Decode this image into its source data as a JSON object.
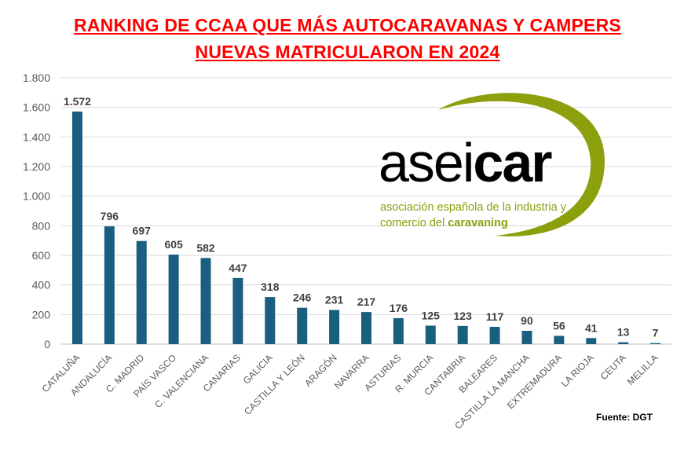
{
  "title_line1": "RANKING DE CCAA QUE MÁS AUTOCARAVANAS Y CAMPERS",
  "title_line2": "NUEVAS MATRICULARON EN 2024",
  "source": "Fuente: DGT",
  "logo": {
    "word_light": "asei",
    "word_bold": "car",
    "tagline1": "asociación española de la industria y",
    "tagline2_prefix": "comercio del ",
    "tagline2_bold": "caravaning",
    "accent_color": "#8ca00e"
  },
  "chart_data": {
    "type": "bar",
    "categories": [
      "CATALUÑA",
      "ANDALUCÍA",
      "C. MADRID",
      "PAÍS VASCO",
      "C. VALENCIANA",
      "CANARIAS",
      "GALICIA",
      "CASTILLA Y LEÓN",
      "ARAGÓN",
      "NAVARRA",
      "ASTURIAS",
      "R. MURCIA",
      "CANTABRIA",
      "BALEARES",
      "CASTILLA LA MANCHA",
      "EXTREMADURA",
      "LA RIOJA",
      "CEUTA",
      "MELILLA"
    ],
    "values": [
      1572,
      796,
      697,
      605,
      582,
      447,
      318,
      246,
      231,
      217,
      176,
      125,
      123,
      117,
      90,
      56,
      41,
      13,
      7
    ],
    "value_labels": [
      "1.572",
      "796",
      "697",
      "605",
      "582",
      "447",
      "318",
      "246",
      "231",
      "217",
      "176",
      "125",
      "123",
      "117",
      "90",
      "56",
      "41",
      "13",
      "7"
    ],
    "ylim": [
      0,
      1800
    ],
    "yticks": [
      0,
      200,
      400,
      600,
      800,
      1000,
      1200,
      1400,
      1600,
      1800
    ],
    "ytick_labels": [
      "0",
      "200",
      "400",
      "600",
      "800",
      "1.000",
      "1.200",
      "1.400",
      "1.600",
      "1.800"
    ],
    "bar_color": "#1a5e80",
    "grid": true
  }
}
